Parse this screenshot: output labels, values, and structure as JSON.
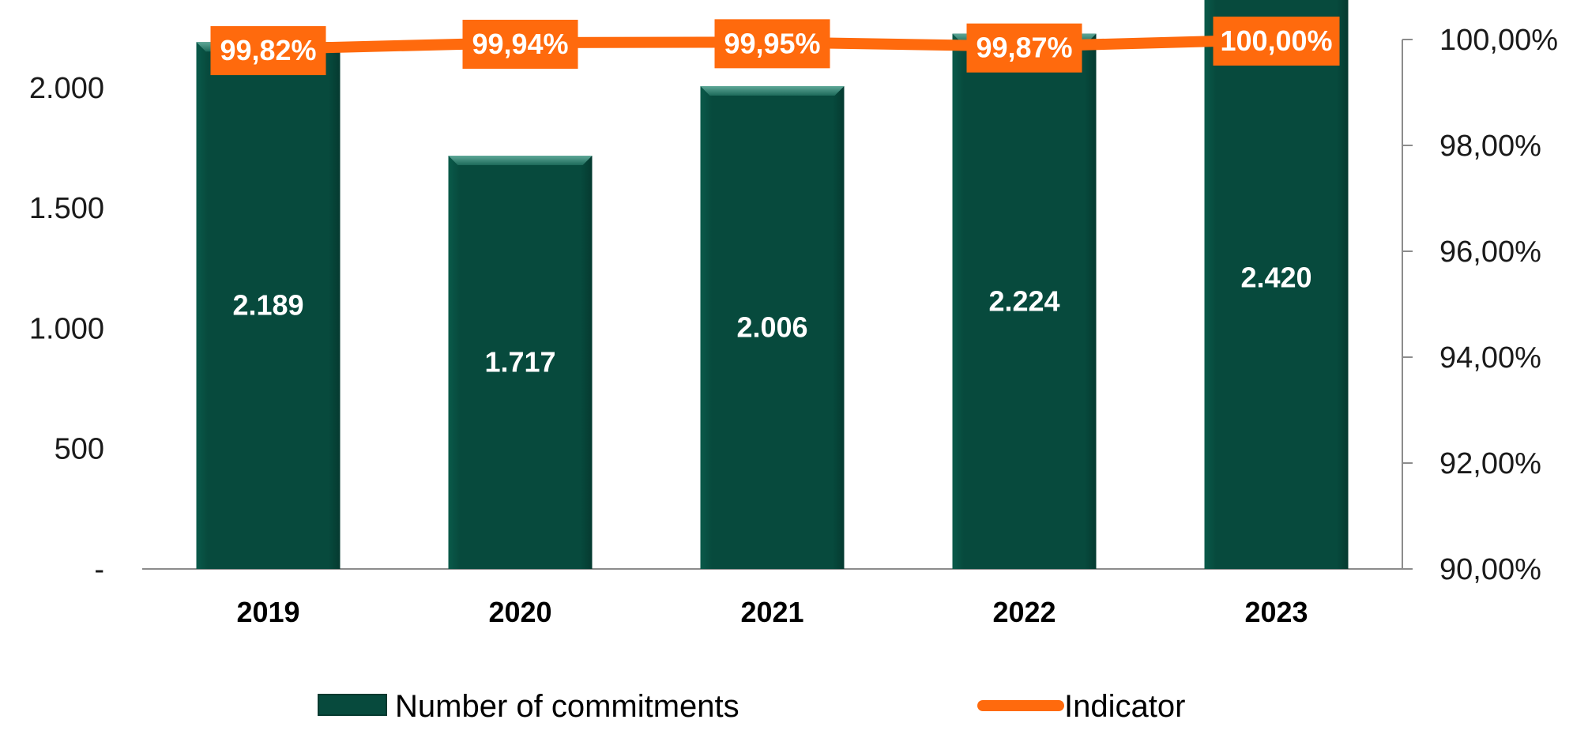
{
  "chart_data": {
    "type": "bar",
    "categories": [
      "2019",
      "2020",
      "2021",
      "2022",
      "2023"
    ],
    "series": [
      {
        "name": "Number of commitments",
        "type": "bar",
        "axis": "left",
        "values": [
          2189,
          1717,
          2006,
          2224,
          2420
        ],
        "labels": [
          "2.189",
          "1.717",
          "2.006",
          "2.224",
          "2.420"
        ],
        "color": "#074a3d"
      },
      {
        "name": "Indicator",
        "type": "line",
        "axis": "right",
        "values": [
          99.82,
          99.94,
          99.95,
          99.87,
          100.0
        ],
        "labels": [
          "99,82%",
          "99,94%",
          "99,95%",
          "99,87%",
          "100,00%"
        ],
        "color": "#ff6a0d"
      }
    ],
    "y_left": {
      "ylim": [
        0,
        2200
      ],
      "ticks": [
        0,
        500,
        1000,
        1500,
        2000
      ],
      "tick_labels": [
        "-",
        "500",
        "1.000",
        "1.500",
        "2.000"
      ]
    },
    "y_right": {
      "ylim": [
        90,
        100
      ],
      "ticks": [
        90,
        92,
        94,
        96,
        98,
        100
      ],
      "tick_labels": [
        "90,00%",
        "92,00%",
        "94,00%",
        "96,00%",
        "98,00%",
        "100,00%"
      ]
    },
    "title": "",
    "xlabel": "",
    "ylabel": "",
    "legend_position": "bottom",
    "grid": false,
    "colors": {
      "bar": "#074a3d",
      "bar_top": "#3a8a78",
      "line": "#ff6a0d",
      "axis": "#8c8c8c"
    }
  }
}
